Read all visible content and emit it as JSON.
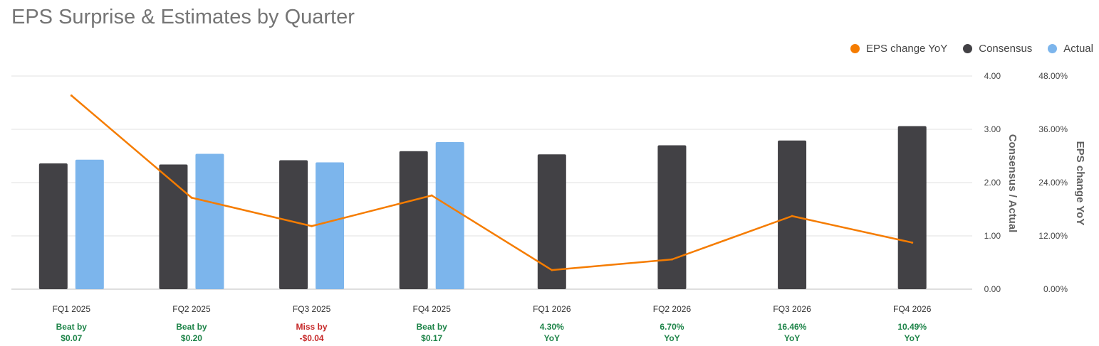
{
  "chart_data": {
    "type": "bar",
    "title": "EPS Surprise & Estimates by Quarter",
    "categories": [
      "FQ1 2025",
      "FQ2 2025",
      "FQ3 2025",
      "FQ4 2025",
      "FQ1 2026",
      "FQ2 2026",
      "FQ3 2026",
      "FQ4 2026"
    ],
    "series": [
      {
        "name": "Consensus",
        "kind": "bar",
        "color": "#424145",
        "values": [
          2.36,
          2.34,
          2.42,
          2.59,
          2.53,
          2.7,
          2.79,
          3.06
        ]
      },
      {
        "name": "Actual",
        "kind": "bar",
        "color": "#7cb5ec",
        "values": [
          2.43,
          2.54,
          2.38,
          2.76,
          null,
          null,
          null,
          null
        ]
      },
      {
        "name": "EPS change YoY",
        "kind": "line",
        "color": "#f57c00",
        "axis": "right",
        "values": [
          43.6,
          20.6,
          14.2,
          21.1,
          4.3,
          6.7,
          16.46,
          10.49
        ]
      }
    ],
    "y_left": {
      "label": "Consensus / Actual",
      "ylim": [
        0,
        4
      ],
      "ticks": [
        "0.00",
        "1.00",
        "2.00",
        "3.00",
        "4.00"
      ]
    },
    "y_right": {
      "label": "EPS change YoY",
      "ylim": [
        0,
        48
      ],
      "ticks": [
        "0.00%",
        "12.00%",
        "24.00%",
        "36.00%",
        "48.00%"
      ]
    },
    "legend_position": "top-right",
    "grid": true,
    "annotations": [
      {
        "line1": "Beat by",
        "line2": "$0.07",
        "status": "beat"
      },
      {
        "line1": "Beat by",
        "line2": "$0.20",
        "status": "beat"
      },
      {
        "line1": "Miss by",
        "line2": "-$0.04",
        "status": "miss"
      },
      {
        "line1": "Beat by",
        "line2": "$0.17",
        "status": "beat"
      },
      {
        "line1": "4.30%",
        "line2": "YoY",
        "status": "yoy"
      },
      {
        "line1": "6.70%",
        "line2": "YoY",
        "status": "yoy"
      },
      {
        "line1": "16.46%",
        "line2": "YoY",
        "status": "yoy"
      },
      {
        "line1": "10.49%",
        "line2": "YoY",
        "status": "yoy"
      }
    ]
  },
  "legend": [
    {
      "label": "EPS change YoY",
      "color": "#f57c00"
    },
    {
      "label": "Consensus",
      "color": "#424145"
    },
    {
      "label": "Actual",
      "color": "#7cb5ec"
    }
  ]
}
